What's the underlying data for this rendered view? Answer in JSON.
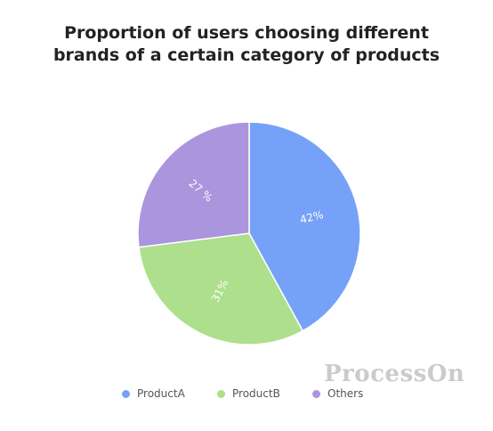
{
  "chart_data": {
    "type": "pie",
    "title_lines": [
      "Proportion of users choosing different",
      "brands of a certain category of products"
    ],
    "slices": [
      {
        "label": "ProductA",
        "value": 42,
        "display": "42%",
        "color": "#76a1f8"
      },
      {
        "label": "ProductB",
        "value": 31,
        "display": "31%",
        "color": "#addf8c"
      },
      {
        "label": "Others",
        "value": 27,
        "display": "27 %",
        "color": "#ab95dd"
      }
    ],
    "legend_position": "bottom"
  },
  "watermark": "ProcessOn"
}
